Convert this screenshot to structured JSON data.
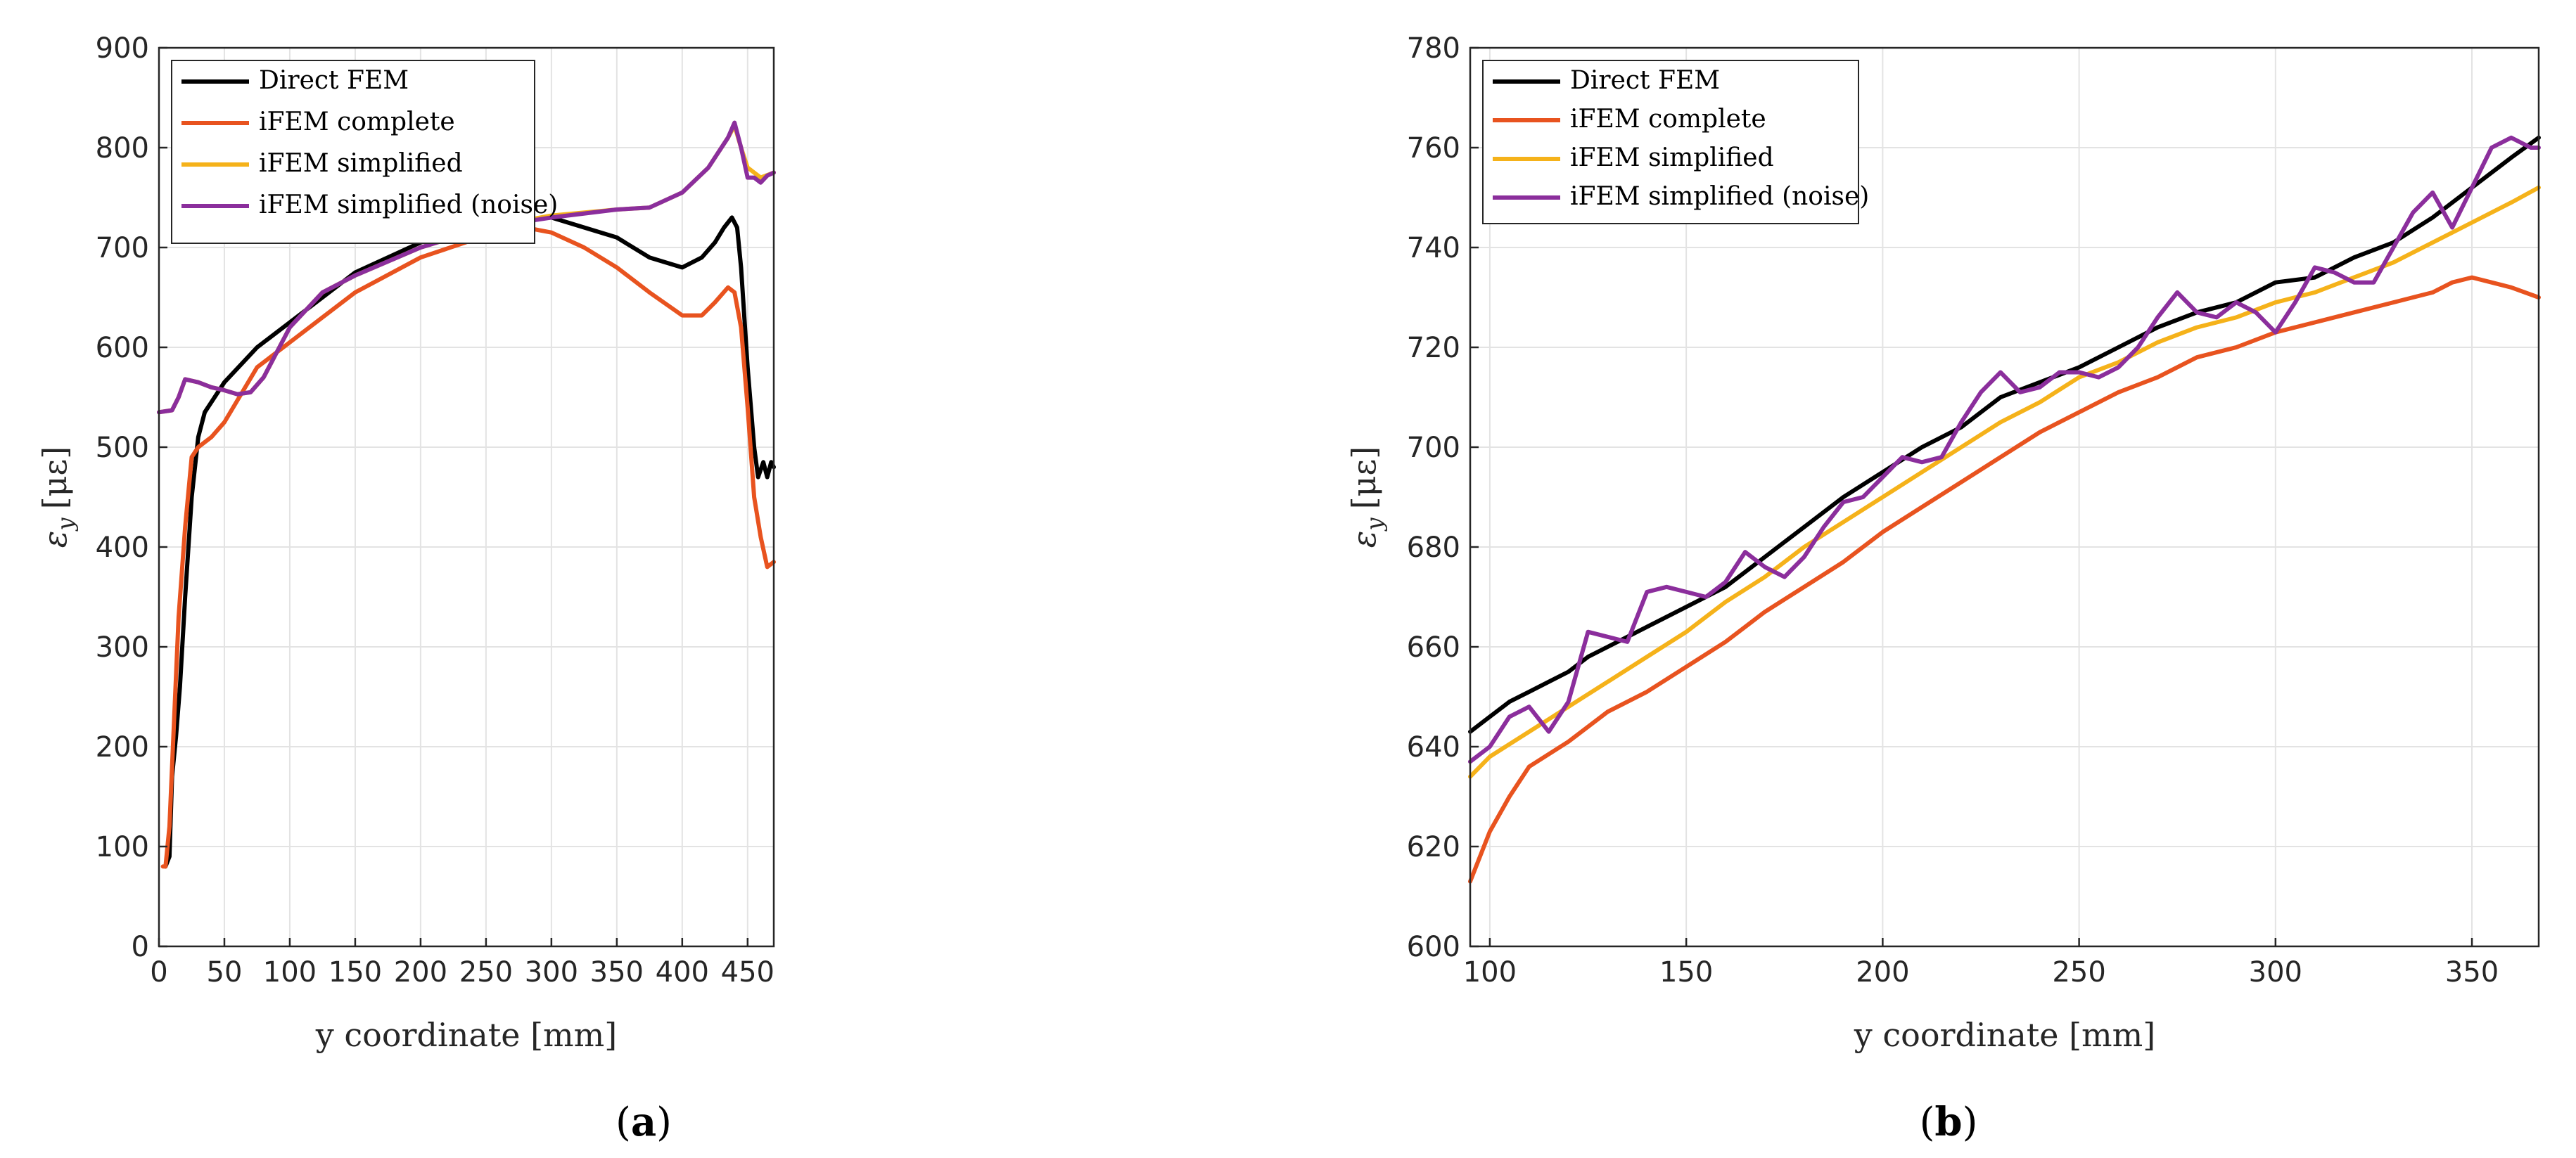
{
  "chart_data": [
    {
      "type": "line",
      "panel_label": "a",
      "title": "",
      "xlabel": "y coordinate [mm]",
      "ylabel_symbol": "ε",
      "ylabel_sub": "y",
      "ylabel_unit": "[με]",
      "xlim": [
        0,
        470
      ],
      "ylim": [
        0,
        900
      ],
      "xticks": [
        0,
        50,
        100,
        150,
        200,
        250,
        300,
        350,
        400,
        450
      ],
      "yticks": [
        0,
        100,
        200,
        300,
        400,
        500,
        600,
        700,
        800,
        900
      ],
      "grid": true,
      "legend_position": "top-left",
      "series": [
        {
          "name": "Direct FEM",
          "color": "#000000",
          "x": [
            5,
            8,
            10,
            13,
            16,
            20,
            25,
            30,
            35,
            40,
            50,
            75,
            100,
            150,
            200,
            250,
            300,
            350,
            375,
            400,
            415,
            425,
            432,
            438,
            442,
            445,
            450,
            455,
            458,
            462,
            465,
            468,
            470
          ],
          "y": [
            80,
            90,
            170,
            210,
            260,
            350,
            450,
            510,
            535,
            545,
            565,
            600,
            625,
            675,
            705,
            725,
            730,
            710,
            690,
            680,
            690,
            705,
            720,
            730,
            720,
            680,
            580,
            500,
            470,
            485,
            470,
            485,
            480
          ]
        },
        {
          "name": "iFEM complete",
          "color": "#E8531F",
          "x": [
            3,
            5,
            8,
            12,
            15,
            20,
            25,
            30,
            35,
            40,
            50,
            75,
            100,
            150,
            200,
            250,
            280,
            300,
            325,
            350,
            375,
            400,
            415,
            425,
            435,
            440,
            445,
            450,
            455,
            460,
            465,
            470
          ],
          "y": [
            80,
            80,
            120,
            240,
            330,
            420,
            490,
            500,
            505,
            510,
            525,
            580,
            605,
            655,
            690,
            712,
            720,
            715,
            700,
            680,
            655,
            632,
            632,
            645,
            660,
            655,
            620,
            540,
            450,
            410,
            380,
            385
          ]
        },
        {
          "name": "iFEM simplified",
          "color": "#F5B21A",
          "x": [
            0,
            10,
            15,
            20,
            30,
            40,
            50,
            60,
            70,
            80,
            100,
            125,
            150,
            200,
            250,
            300,
            350,
            375,
            400,
            420,
            435,
            440,
            445,
            450,
            460,
            470
          ],
          "y": [
            535,
            537,
            550,
            568,
            565,
            560,
            557,
            553,
            555,
            570,
            620,
            655,
            672,
            700,
            720,
            732,
            738,
            740,
            755,
            780,
            810,
            822,
            800,
            780,
            770,
            775
          ]
        },
        {
          "name": "iFEM simplified (noise)",
          "color": "#8B2E9C",
          "x": [
            0,
            10,
            15,
            20,
            30,
            40,
            50,
            60,
            70,
            80,
            100,
            125,
            150,
            200,
            250,
            300,
            350,
            375,
            400,
            420,
            435,
            440,
            445,
            450,
            455,
            460,
            465,
            470
          ],
          "y": [
            535,
            537,
            550,
            568,
            565,
            560,
            557,
            553,
            555,
            570,
            620,
            655,
            672,
            700,
            720,
            730,
            738,
            740,
            755,
            780,
            810,
            825,
            800,
            770,
            770,
            765,
            772,
            775
          ]
        }
      ]
    },
    {
      "type": "line",
      "panel_label": "b",
      "title": "",
      "xlabel": "y coordinate [mm]",
      "ylabel_symbol": "ε",
      "ylabel_sub": "y",
      "ylabel_unit": "[με]",
      "xlim": [
        95,
        367
      ],
      "ylim": [
        600,
        780
      ],
      "xticks": [
        100,
        150,
        200,
        250,
        300,
        350
      ],
      "yticks": [
        600,
        620,
        640,
        660,
        680,
        700,
        720,
        740,
        760,
        780
      ],
      "grid": true,
      "legend_position": "top-left",
      "series": [
        {
          "name": "Direct FEM",
          "color": "#000000",
          "x": [
            95,
            100,
            105,
            110,
            115,
            120,
            125,
            130,
            135,
            140,
            150,
            160,
            170,
            180,
            190,
            200,
            210,
            220,
            230,
            240,
            250,
            260,
            270,
            280,
            290,
            300,
            310,
            320,
            330,
            340,
            350,
            360,
            367
          ],
          "y": [
            643,
            646,
            649,
            651,
            653,
            655,
            658,
            660,
            662,
            664,
            668,
            672,
            678,
            684,
            690,
            695,
            700,
            704,
            710,
            713,
            716,
            720,
            724,
            727,
            729,
            733,
            734,
            738,
            741,
            746,
            752,
            758,
            762
          ]
        },
        {
          "name": "iFEM complete",
          "color": "#E8531F",
          "x": [
            95,
            100,
            105,
            110,
            120,
            130,
            140,
            150,
            160,
            170,
            180,
            190,
            200,
            210,
            220,
            230,
            240,
            250,
            260,
            270,
            280,
            290,
            300,
            310,
            320,
            330,
            340,
            345,
            350,
            355,
            360,
            367
          ],
          "y": [
            613,
            623,
            630,
            636,
            641,
            647,
            651,
            656,
            661,
            667,
            672,
            677,
            683,
            688,
            693,
            698,
            703,
            707,
            711,
            714,
            718,
            720,
            723,
            725,
            727,
            729,
            731,
            733,
            734,
            733,
            732,
            730
          ]
        },
        {
          "name": "iFEM simplified",
          "color": "#F5B21A",
          "x": [
            95,
            100,
            110,
            120,
            130,
            140,
            150,
            160,
            170,
            180,
            190,
            200,
            210,
            220,
            230,
            240,
            250,
            260,
            270,
            280,
            290,
            300,
            310,
            320,
            330,
            340,
            350,
            360,
            367
          ],
          "y": [
            634,
            638,
            643,
            648,
            653,
            658,
            663,
            669,
            674,
            680,
            685,
            690,
            695,
            700,
            705,
            709,
            714,
            717,
            721,
            724,
            726,
            729,
            731,
            734,
            737,
            741,
            745,
            749,
            752
          ]
        },
        {
          "name": "iFEM simplified (noise)",
          "color": "#8B2E9C",
          "x": [
            95,
            100,
            105,
            110,
            115,
            120,
            125,
            130,
            135,
            140,
            145,
            150,
            155,
            160,
            165,
            170,
            175,
            180,
            185,
            190,
            195,
            200,
            205,
            210,
            215,
            220,
            225,
            230,
            235,
            240,
            245,
            250,
            255,
            260,
            265,
            270,
            275,
            280,
            285,
            290,
            295,
            300,
            305,
            310,
            315,
            320,
            325,
            330,
            335,
            340,
            345,
            350,
            355,
            360,
            365,
            367
          ],
          "y": [
            637,
            640,
            646,
            648,
            643,
            649,
            663,
            662,
            661,
            671,
            672,
            671,
            670,
            673,
            679,
            676,
            674,
            678,
            684,
            689,
            690,
            694,
            698,
            697,
            698,
            705,
            711,
            715,
            711,
            712,
            715,
            715,
            714,
            716,
            720,
            726,
            731,
            727,
            726,
            729,
            727,
            723,
            729,
            736,
            735,
            733,
            733,
            740,
            747,
            751,
            744,
            752,
            760,
            762,
            760,
            760
          ]
        }
      ]
    }
  ]
}
